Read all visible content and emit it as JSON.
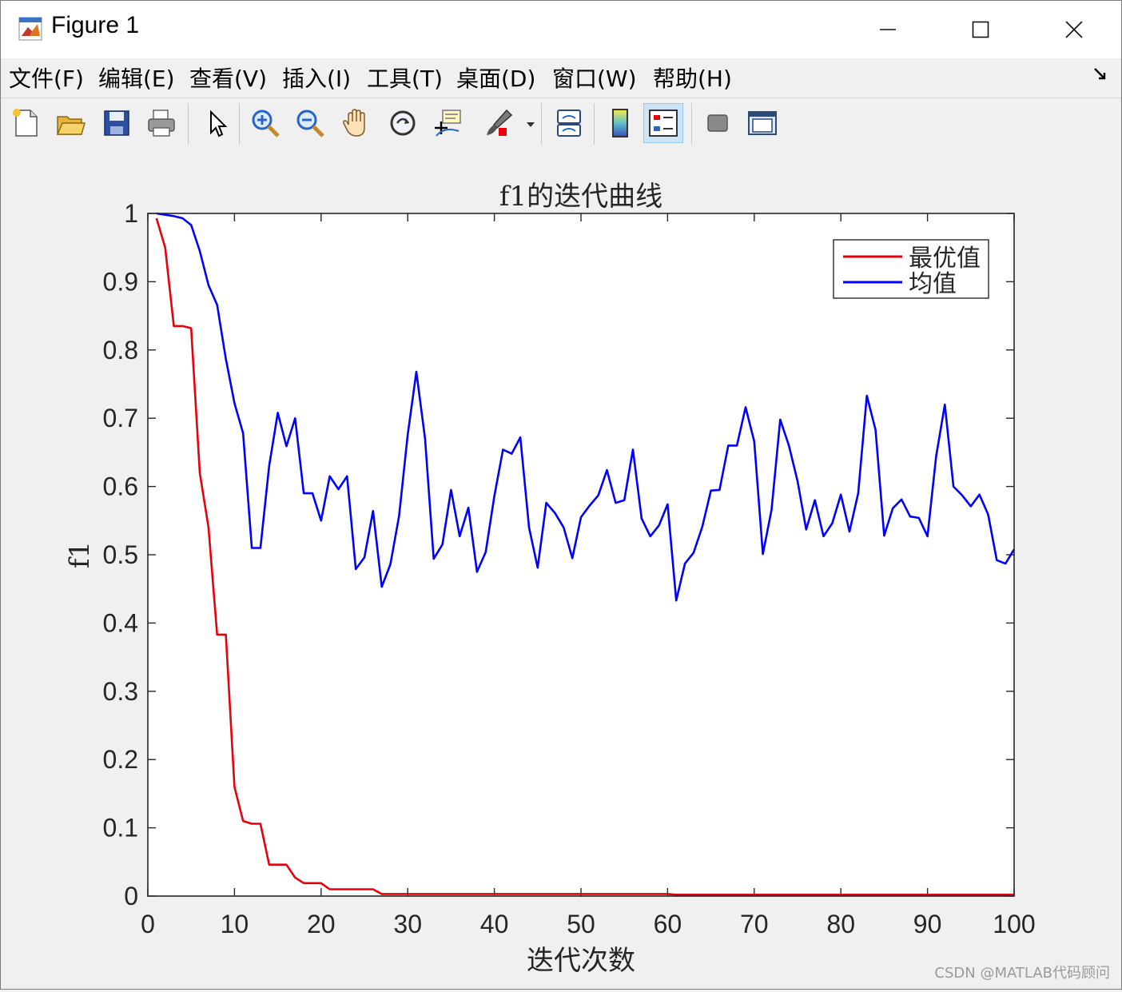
{
  "window": {
    "title": "Figure 1",
    "minimize_glyph": "—",
    "maximize_glyph": "☐",
    "close_glyph": "✕"
  },
  "menu": [
    {
      "label": "文件(F)"
    },
    {
      "label": "编辑(E)"
    },
    {
      "label": "查看(V)"
    },
    {
      "label": "插入(I)"
    },
    {
      "label": "工具(T)"
    },
    {
      "label": "桌面(D)"
    },
    {
      "label": "窗口(W)"
    },
    {
      "label": "帮助(H)"
    }
  ],
  "toolbar": {
    "icons": [
      "new-figure-icon",
      "open-file-icon",
      "save-icon",
      "print-icon",
      "pointer-icon",
      "zoom-in-icon",
      "zoom-out-icon",
      "pan-hand-icon",
      "rotate-3d-icon",
      "data-cursor-icon",
      "brush-icon",
      "link-plot-icon",
      "colorbar-icon",
      "legend-icon",
      "hide-plot-tools-icon",
      "show-plot-tools-icon"
    ]
  },
  "watermark": "CSDN @MATLAB代码顾问",
  "colors": {
    "best": "#e8000b",
    "mean": "#0000ff",
    "axes": "#262626"
  },
  "chart_data": {
    "type": "line",
    "title": "f1的迭代曲线",
    "xlabel": "迭代次数",
    "ylabel": "f1",
    "xlim": [
      0,
      100
    ],
    "ylim": [
      0,
      1
    ],
    "xticks": [
      "0",
      "10",
      "20",
      "30",
      "40",
      "50",
      "60",
      "70",
      "80",
      "90",
      "100"
    ],
    "yticks": [
      "0",
      "0.1",
      "0.2",
      "0.3",
      "0.4",
      "0.5",
      "0.6",
      "0.7",
      "0.8",
      "0.9",
      "1"
    ],
    "grid": false,
    "legend_position": "top-right",
    "x": [
      1,
      2,
      3,
      4,
      5,
      6,
      7,
      8,
      9,
      10,
      11,
      12,
      13,
      14,
      15,
      16,
      17,
      18,
      19,
      20,
      21,
      22,
      23,
      24,
      25,
      26,
      27,
      28,
      29,
      30,
      31,
      32,
      33,
      34,
      35,
      36,
      37,
      38,
      39,
      40,
      41,
      42,
      43,
      44,
      45,
      46,
      47,
      48,
      49,
      50,
      51,
      52,
      53,
      54,
      55,
      56,
      57,
      58,
      59,
      60,
      61,
      62,
      63,
      64,
      65,
      66,
      67,
      68,
      69,
      70,
      71,
      72,
      73,
      74,
      75,
      76,
      77,
      78,
      79,
      80,
      81,
      82,
      83,
      84,
      85,
      86,
      87,
      88,
      89,
      90,
      91,
      92,
      93,
      94,
      95,
      96,
      97,
      98,
      99,
      100
    ],
    "series": [
      {
        "name": "最优值",
        "color": "#e8000b",
        "values": [
          0.993,
          0.95,
          0.835,
          0.835,
          0.832,
          0.62,
          0.54,
          0.383,
          0.383,
          0.16,
          0.11,
          0.106,
          0.106,
          0.046,
          0.046,
          0.046,
          0.027,
          0.019,
          0.019,
          0.019,
          0.01,
          0.01,
          0.01,
          0.01,
          0.01,
          0.01,
          0.003,
          0.003,
          0.003,
          0.003,
          0.003,
          0.003,
          0.003,
          0.003,
          0.003,
          0.003,
          0.003,
          0.003,
          0.003,
          0.003,
          0.003,
          0.003,
          0.003,
          0.003,
          0.003,
          0.003,
          0.003,
          0.003,
          0.003,
          0.003,
          0.003,
          0.003,
          0.003,
          0.003,
          0.003,
          0.003,
          0.003,
          0.003,
          0.003,
          0.003,
          0.002,
          0.002,
          0.002,
          0.002,
          0.002,
          0.002,
          0.002,
          0.002,
          0.002,
          0.002,
          0.002,
          0.002,
          0.002,
          0.002,
          0.002,
          0.002,
          0.002,
          0.002,
          0.002,
          0.002,
          0.002,
          0.002,
          0.002,
          0.002,
          0.002,
          0.002,
          0.002,
          0.002,
          0.002,
          0.002,
          0.002,
          0.002,
          0.002,
          0.002,
          0.002,
          0.002,
          0.002,
          0.002,
          0.002,
          0.002
        ]
      },
      {
        "name": "均值",
        "color": "#0000ff",
        "values": [
          1.0,
          0.998,
          0.996,
          0.993,
          0.983,
          0.945,
          0.895,
          0.866,
          0.787,
          0.722,
          0.678,
          0.51,
          0.51,
          0.63,
          0.708,
          0.659,
          0.7,
          0.59,
          0.59,
          0.55,
          0.615,
          0.596,
          0.615,
          0.479,
          0.496,
          0.564,
          0.453,
          0.486,
          0.557,
          0.676,
          0.768,
          0.67,
          0.494,
          0.515,
          0.595,
          0.527,
          0.569,
          0.475,
          0.504,
          0.586,
          0.654,
          0.648,
          0.672,
          0.54,
          0.481,
          0.576,
          0.561,
          0.54,
          0.495,
          0.555,
          0.572,
          0.587,
          0.624,
          0.576,
          0.58,
          0.654,
          0.553,
          0.527,
          0.543,
          0.574,
          0.433,
          0.487,
          0.503,
          0.541,
          0.594,
          0.595,
          0.66,
          0.66,
          0.716,
          0.666,
          0.501,
          0.566,
          0.698,
          0.66,
          0.608,
          0.537,
          0.58,
          0.527,
          0.546,
          0.588,
          0.534,
          0.59,
          0.733,
          0.683,
          0.528,
          0.568,
          0.581,
          0.556,
          0.554,
          0.527,
          0.644,
          0.72,
          0.6,
          0.587,
          0.571,
          0.588,
          0.559,
          0.492,
          0.487,
          0.508
        ]
      }
    ]
  }
}
